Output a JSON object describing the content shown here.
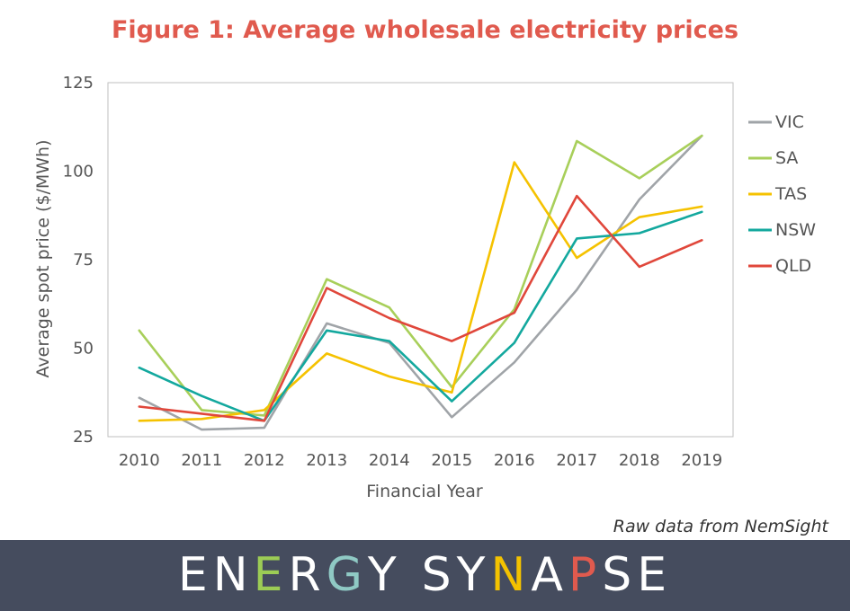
{
  "title": "Figure 1: Average wholesale electricity prices",
  "source_note": "Raw data from NemSight",
  "logo": {
    "text": "ENERGY SYNAPSE",
    "letter_colors": [
      "#ffffff",
      "#ffffff",
      "#9ccc55",
      "#ffffff",
      "#8fc9c4",
      "#ffffff",
      "#ffffff",
      "#ffffff",
      "#ffffff",
      "#f3c200",
      "#ffffff",
      "#e05a4e",
      "#ffffff",
      "#ffffff"
    ]
  },
  "chart_data": {
    "type": "line",
    "x": [
      "2010",
      "2011",
      "2012",
      "2013",
      "2014",
      "2015",
      "2016",
      "2017",
      "2018",
      "2019"
    ],
    "xlabel": "Financial Year",
    "ylabel": "Average spot price ($/MWh)",
    "ylim": [
      25,
      125
    ],
    "yticks": [
      "25",
      "50",
      "75",
      "100",
      "125"
    ],
    "grid": false,
    "legend_position": "right",
    "series": [
      {
        "name": "VIC",
        "color": "#a0a4a8",
        "values": [
          36,
          27,
          27.5,
          57,
          51.5,
          30.5,
          46,
          66.5,
          92,
          110
        ]
      },
      {
        "name": "SA",
        "color": "#a8cf5a",
        "values": [
          55,
          32.5,
          31,
          69.5,
          61.5,
          39,
          61,
          108.5,
          98,
          110
        ]
      },
      {
        "name": "TAS",
        "color": "#f5c200",
        "values": [
          29.5,
          30,
          32.5,
          48.5,
          42,
          37.5,
          102.5,
          75.5,
          87,
          90
        ]
      },
      {
        "name": "NSW",
        "color": "#13a89e",
        "values": [
          44.5,
          36.5,
          29.5,
          55,
          52,
          35,
          51.5,
          81,
          82.5,
          88.5
        ]
      },
      {
        "name": "QLD",
        "color": "#e0473b",
        "values": [
          33.5,
          31.5,
          29.5,
          67,
          58.5,
          52,
          60,
          93,
          73,
          80.5
        ]
      }
    ]
  }
}
